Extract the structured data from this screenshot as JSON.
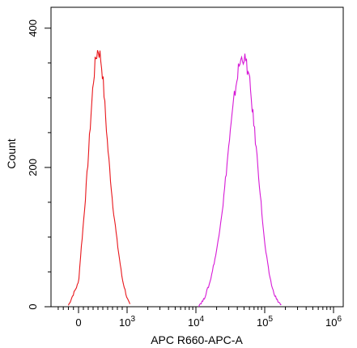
{
  "chart_data": {
    "type": "area",
    "title": "",
    "xlabel": "APC R660-APC-A",
    "ylabel": "Count",
    "x_scale": "biexponential",
    "xlim": [
      -500,
      1000000
    ],
    "ylim": [
      0,
      430
    ],
    "grid": false,
    "legend": "none",
    "x_ticks": [
      {
        "value": 0,
        "base": "0",
        "exp": ""
      },
      {
        "value": 1000,
        "base": "10",
        "exp": "3"
      },
      {
        "value": 10000,
        "base": "10",
        "exp": "4"
      },
      {
        "value": 100000,
        "base": "10",
        "exp": "5"
      },
      {
        "value": 1000000,
        "base": "10",
        "exp": "6"
      }
    ],
    "y_ticks": [
      {
        "value": 0,
        "label": "0"
      },
      {
        "value": 200,
        "label": "200"
      },
      {
        "value": 400,
        "label": "400"
      }
    ],
    "series": [
      {
        "color": "#e8161b",
        "x": [
          -200,
          0,
          50,
          100,
          150,
          200,
          250,
          300,
          350,
          400,
          450,
          500,
          550,
          600,
          700,
          800,
          900,
          1000,
          1100
        ],
        "y": [
          2,
          35,
          80,
          120,
          165,
          215,
          270,
          320,
          355,
          370,
          360,
          330,
          280,
          230,
          150,
          90,
          40,
          12,
          2
        ]
      },
      {
        "color": "#d619d6",
        "x": [
          11000,
          13000,
          16000,
          20000,
          25000,
          30000,
          36000,
          42000,
          48000,
          54000,
          60000,
          70000,
          80000,
          90000,
          100000,
          115000,
          130000,
          150000,
          175000
        ],
        "y": [
          2,
          10,
          35,
          80,
          150,
          230,
          300,
          345,
          360,
          350,
          325,
          260,
          200,
          140,
          90,
          50,
          25,
          10,
          2
        ]
      }
    ]
  }
}
